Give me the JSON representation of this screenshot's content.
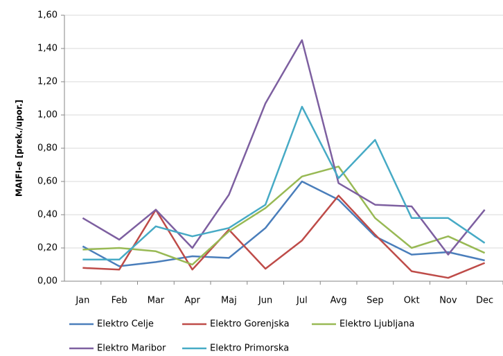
{
  "chart_data": {
    "type": "line",
    "ylabel": "MAIFI-e [prek./upor.]",
    "categories": [
      "Jan",
      "Feb",
      "Mar",
      "Apr",
      "Maj",
      "Jun",
      "Jul",
      "Avg",
      "Sep",
      "Okt",
      "Nov",
      "Dec"
    ],
    "series": [
      {
        "name": "Elektro Celje",
        "color": "#4a7ebb",
        "values": [
          0.21,
          0.09,
          0.115,
          0.15,
          0.14,
          0.32,
          0.6,
          0.49,
          0.27,
          0.16,
          0.175,
          0.125
        ]
      },
      {
        "name": "Elektro Gorenjska",
        "color": "#be4b48",
        "values": [
          0.08,
          0.07,
          0.43,
          0.07,
          0.31,
          0.075,
          0.245,
          0.515,
          0.28,
          0.06,
          0.02,
          0.11
        ]
      },
      {
        "name": "Elektro Ljubljana",
        "color": "#98b954",
        "values": [
          0.19,
          0.2,
          0.18,
          0.1,
          0.3,
          0.44,
          0.63,
          0.69,
          0.38,
          0.2,
          0.27,
          0.17
        ]
      },
      {
        "name": "Elektro Maribor",
        "color": "#7d5fa0",
        "values": [
          0.38,
          0.25,
          0.43,
          0.2,
          0.52,
          1.07,
          1.45,
          0.59,
          0.46,
          0.45,
          0.16,
          0.43
        ]
      },
      {
        "name": "Elektro Primorska",
        "color": "#46aac5",
        "values": [
          0.13,
          0.13,
          0.33,
          0.27,
          0.32,
          0.46,
          1.05,
          0.62,
          0.85,
          0.38,
          0.38,
          0.23
        ]
      }
    ],
    "ylim": [
      0,
      1.6
    ],
    "yticks": [
      {
        "value": 0,
        "label": "0,00"
      },
      {
        "value": 0.2,
        "label": "0,20"
      },
      {
        "value": 0.4,
        "label": "0,40"
      },
      {
        "value": 0.6,
        "label": "0,60"
      },
      {
        "value": 0.8,
        "label": "0,80"
      },
      {
        "value": 1.0,
        "label": "1,00"
      },
      {
        "value": 1.2,
        "label": "1,20"
      },
      {
        "value": 1.4,
        "label": "1,40"
      },
      {
        "value": 1.6,
        "label": "1,60"
      }
    ],
    "grid": true,
    "legend": "bottom"
  }
}
